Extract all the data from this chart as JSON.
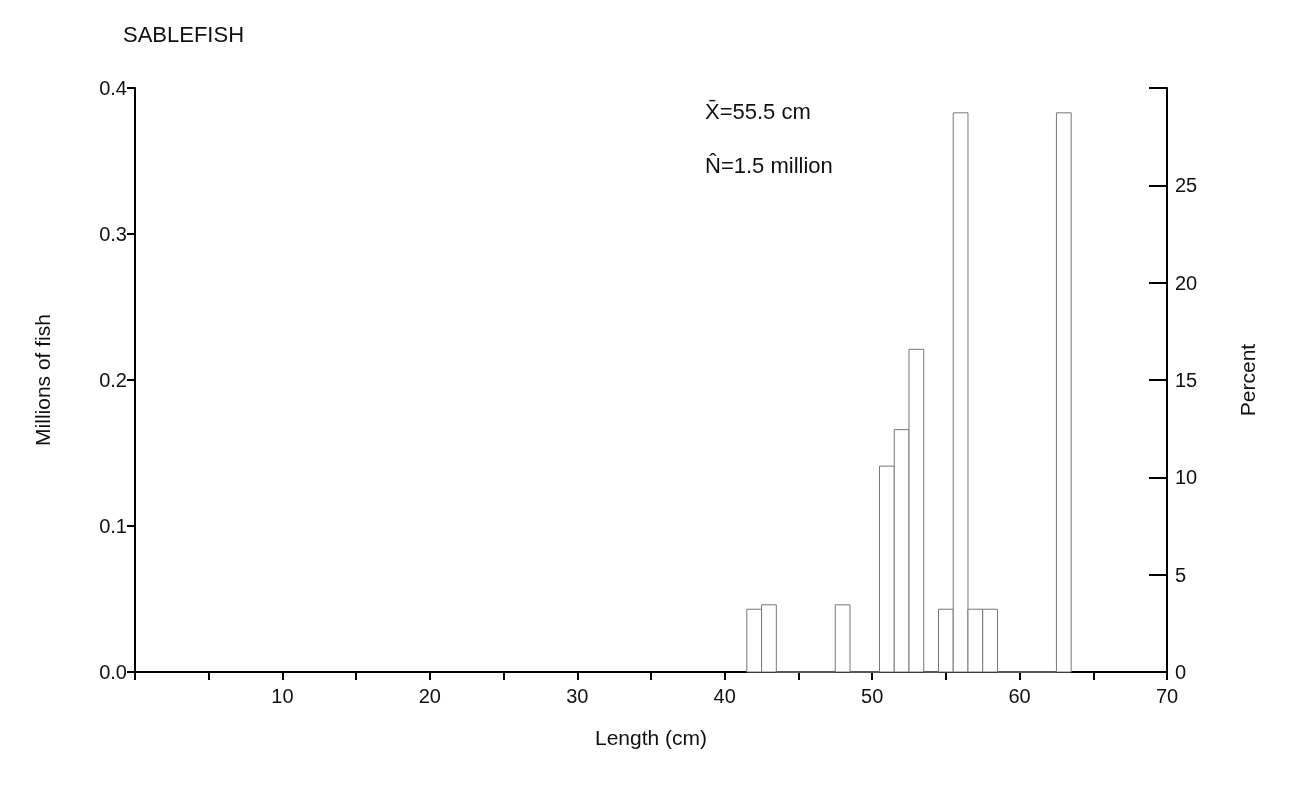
{
  "chart_data": {
    "type": "histogram",
    "title": "SABLEFISH",
    "xlabel": "Length (cm)",
    "ylabel": "Millions of fish",
    "y2label": "Percent",
    "annotations": [
      "X̄=55.5 cm",
      "N̂=1.5 million"
    ],
    "bins": [
      41.5,
      42.5,
      43.5,
      44.5,
      45.5,
      46.5,
      47.5,
      48.5,
      49.5,
      50.5,
      51.5,
      52.5,
      53.5,
      54.5,
      55.5,
      56.5,
      57.5,
      58.5,
      59.5,
      60.5,
      61.5,
      62.5,
      63.5
    ],
    "values": [
      0.043,
      0.046,
      0,
      0,
      0,
      0,
      0.046,
      0,
      0,
      0.141,
      0.166,
      0.221,
      0,
      0.043,
      0.383,
      0.043,
      0.043,
      0,
      0,
      0,
      0,
      0.383
    ],
    "color": "#777777",
    "xlim": [
      0,
      70
    ],
    "xticks": [
      {
        "value": 0,
        "label": null
      },
      {
        "value": 5,
        "label": null
      },
      10,
      {
        "value": 15,
        "label": null
      },
      20,
      {
        "value": 25,
        "label": null
      },
      30,
      {
        "value": 35,
        "label": null
      },
      40,
      {
        "value": 45,
        "label": null
      },
      50,
      {
        "value": 55,
        "label": null
      },
      60,
      {
        "value": 65,
        "label": null
      },
      70
    ],
    "ylim": [
      0,
      0.4
    ],
    "yticks": [
      {
        "value": 0,
        "label": "0.0"
      },
      0.1,
      0.2,
      0.3,
      0.4
    ],
    "y2lim": [
      0,
      30
    ],
    "y2ticks": [
      0,
      5,
      10,
      15,
      20,
      25,
      {
        "value": 30,
        "label": null
      }
    ],
    "grid": false
  }
}
